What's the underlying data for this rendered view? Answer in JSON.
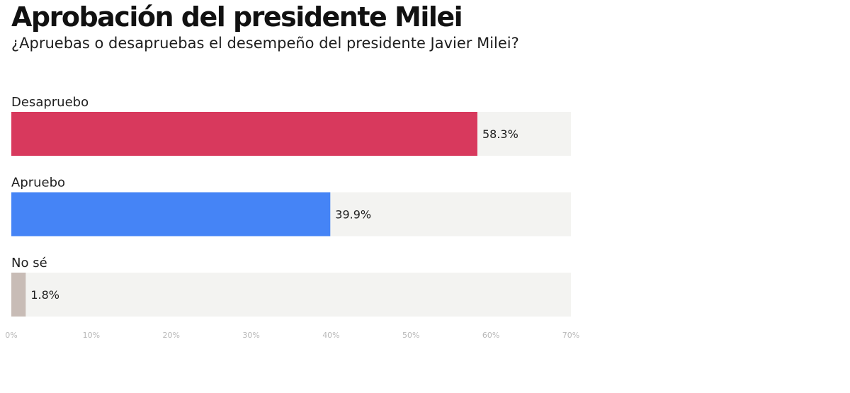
{
  "title": "Aprobación del presidente Milei",
  "subtitle": "¿Apruebas o desapruebas el desempeño del presidente Javier Milei?",
  "colors": {
    "track": "#f3f3f1",
    "desapruebo": "#d8395d",
    "apruebo": "#4584f6",
    "no_se": "#c8bcb6"
  },
  "chart_data": {
    "type": "bar",
    "orientation": "horizontal",
    "categories": [
      "Desapruebo",
      "Apruebo",
      "No sé"
    ],
    "values": [
      58.3,
      39.9,
      1.8
    ],
    "value_labels": [
      "58.3%",
      "39.9%",
      "1.8%"
    ],
    "bar_colors": [
      "#d8395d",
      "#4584f6",
      "#c8bcb6"
    ],
    "xlim": [
      0,
      70
    ],
    "ticks": [
      0,
      10,
      20,
      30,
      40,
      50,
      60,
      70
    ],
    "tick_labels": [
      "0%",
      "10%",
      "20%",
      "30%",
      "40%",
      "50%",
      "60%",
      "70%"
    ],
    "grid": false,
    "legend": "none"
  }
}
